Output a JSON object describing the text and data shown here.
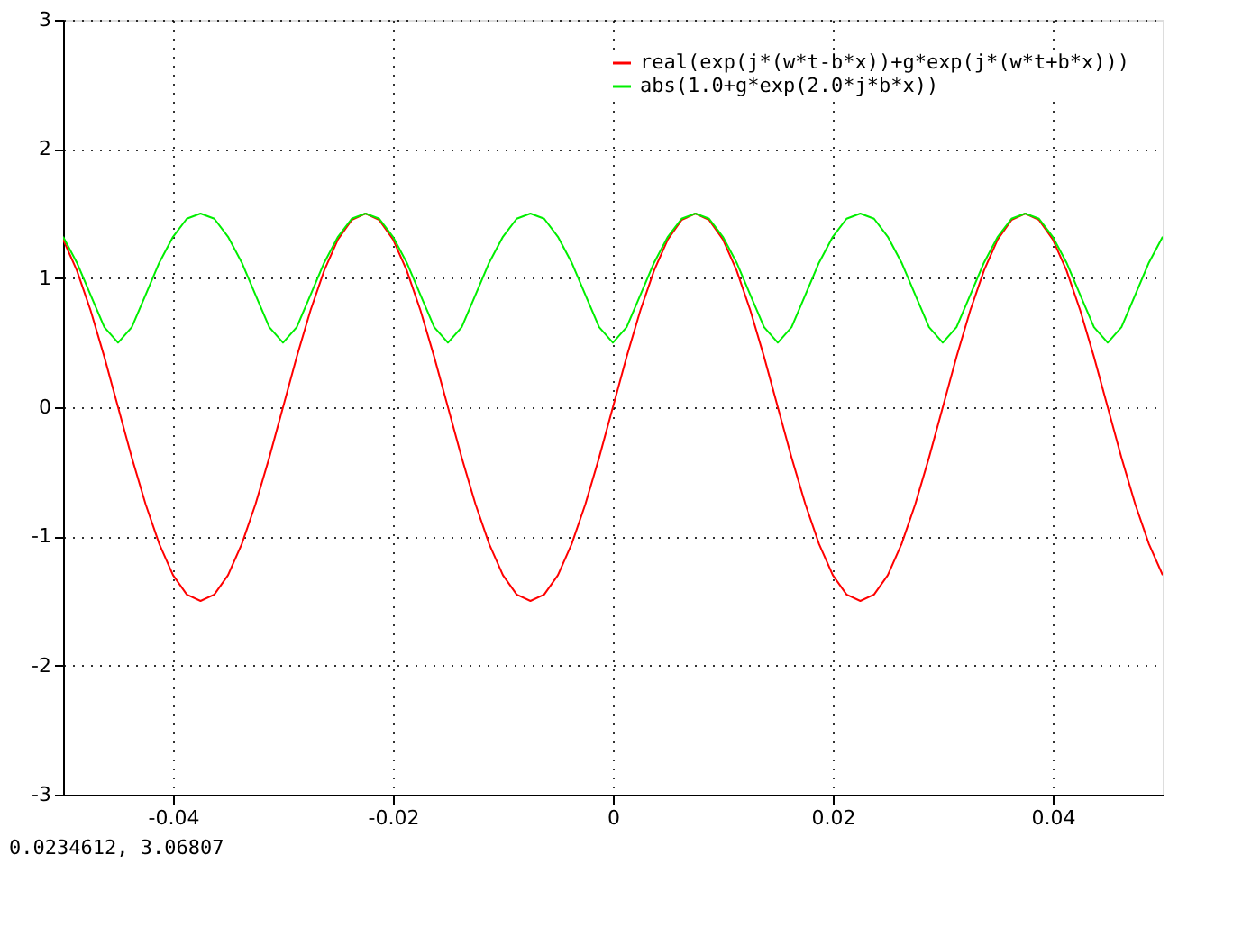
{
  "chart_data": {
    "type": "line",
    "x": [
      -0.05,
      -0.04875,
      -0.0475,
      -0.04625,
      -0.045,
      -0.04375,
      -0.0425,
      -0.04125,
      -0.04,
      -0.03875,
      -0.0375,
      -0.03625,
      -0.035,
      -0.03375,
      -0.0325,
      -0.03125,
      -0.03,
      -0.02875,
      -0.0275,
      -0.02625,
      -0.025,
      -0.02375,
      -0.0225,
      -0.02125,
      -0.02,
      -0.01875,
      -0.0175,
      -0.01625,
      -0.015,
      -0.01375,
      -0.0125,
      -0.01125,
      -0.01,
      -0.00875,
      -0.0075,
      -0.00625,
      -0.005,
      -0.00375,
      -0.0025,
      -0.00125,
      0,
      0.00125,
      0.0025,
      0.00375,
      0.005,
      0.00625,
      0.0075,
      0.00875,
      0.01,
      0.01125,
      0.0125,
      0.01375,
      0.015,
      0.01625,
      0.0175,
      0.01875,
      0.02,
      0.02125,
      0.0225,
      0.02375,
      0.025,
      0.02625,
      0.0275,
      0.02875,
      0.03,
      0.03125,
      0.0325,
      0.03375,
      0.035,
      0.03625,
      0.0375,
      0.03875,
      0.04,
      0.04125,
      0.0425,
      0.04375,
      0.045,
      0.04625,
      0.0475,
      0.04875,
      0.05
    ],
    "series": [
      {
        "name": "real(exp(j*(w*t-b*x))+g*exp(j*(w*t+b*x)))",
        "color": "#ff0000",
        "values": [
          1.3,
          1.06,
          0.75,
          0.39,
          0,
          -0.39,
          -0.75,
          -1.06,
          -1.3,
          -1.45,
          -1.5,
          -1.45,
          -1.3,
          -1.06,
          -0.75,
          -0.39,
          0,
          0.39,
          0.75,
          1.06,
          1.3,
          1.45,
          1.5,
          1.45,
          1.3,
          1.06,
          0.75,
          0.39,
          0,
          -0.39,
          -0.75,
          -1.06,
          -1.3,
          -1.45,
          -1.5,
          -1.45,
          -1.3,
          -1.06,
          -0.75,
          -0.39,
          0,
          0.39,
          0.75,
          1.06,
          1.3,
          1.45,
          1.5,
          1.45,
          1.3,
          1.06,
          0.75,
          0.39,
          0,
          -0.39,
          -0.75,
          -1.06,
          -1.3,
          -1.45,
          -1.5,
          -1.45,
          -1.3,
          -1.06,
          -0.75,
          -0.39,
          0,
          0.39,
          0.75,
          1.06,
          1.3,
          1.45,
          1.5,
          1.45,
          1.3,
          1.06,
          0.75,
          0.39,
          0,
          -0.39,
          -0.75,
          -1.06,
          -1.3
        ]
      },
      {
        "name": "abs(1.0+g*exp(2.0*j*b*x))",
        "color": "#00ee00",
        "values": [
          1.32,
          1.12,
          0.87,
          0.62,
          0.5,
          0.62,
          0.87,
          1.12,
          1.32,
          1.46,
          1.5,
          1.46,
          1.32,
          1.12,
          0.87,
          0.62,
          0.5,
          0.62,
          0.87,
          1.12,
          1.32,
          1.46,
          1.5,
          1.46,
          1.32,
          1.12,
          0.87,
          0.62,
          0.5,
          0.62,
          0.87,
          1.12,
          1.32,
          1.46,
          1.5,
          1.46,
          1.32,
          1.12,
          0.87,
          0.62,
          0.5,
          0.62,
          0.87,
          1.12,
          1.32,
          1.46,
          1.5,
          1.46,
          1.32,
          1.12,
          0.87,
          0.62,
          0.5,
          0.62,
          0.87,
          1.12,
          1.32,
          1.46,
          1.5,
          1.46,
          1.32,
          1.12,
          0.87,
          0.62,
          0.5,
          0.62,
          0.87,
          1.12,
          1.32,
          1.46,
          1.5,
          1.46,
          1.32,
          1.12,
          0.87,
          0.62,
          0.5,
          0.62,
          0.87,
          1.12,
          1.32
        ]
      }
    ],
    "xlim": [
      -0.05,
      0.05
    ],
    "xticks": [
      -0.04,
      -0.02,
      0,
      0.02,
      0.04
    ],
    "ylim": [
      -3,
      3
    ],
    "yticks": [
      -3,
      -2,
      -1,
      0,
      1,
      2,
      3
    ],
    "grid": true,
    "legend": "top right",
    "marker": "none",
    "line_style": "solid",
    "annotations": [
      "0.0234612,  3.06807"
    ]
  }
}
